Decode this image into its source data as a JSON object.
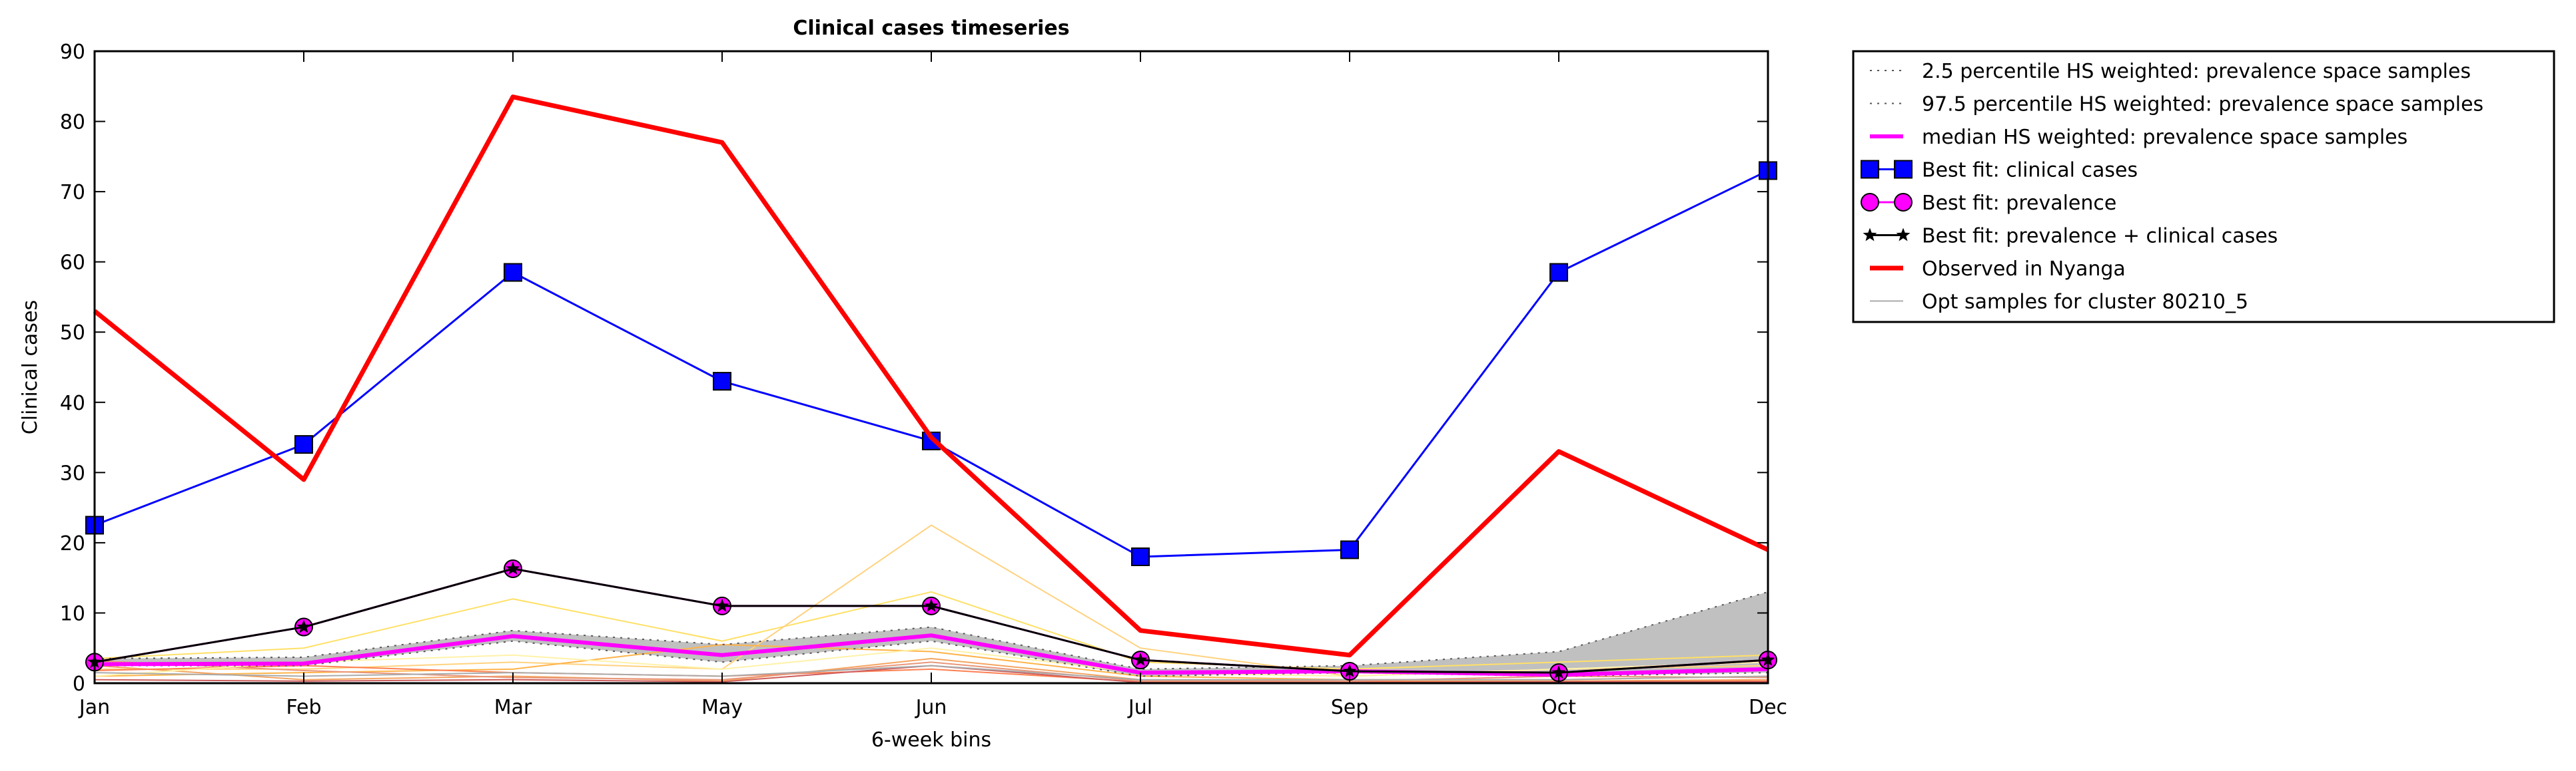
{
  "chart_data": {
    "type": "line",
    "title": "Clinical cases timeseries",
    "xlabel": "6-week bins",
    "ylabel": "Clinical cases",
    "categories": [
      "Jan",
      "Feb",
      "Mar",
      "May",
      "Jun",
      "Jul",
      "Sep",
      "Oct",
      "Dec"
    ],
    "ylim": [
      0,
      90
    ],
    "yticks": [
      0,
      10,
      20,
      30,
      40,
      50,
      60,
      70,
      80,
      90
    ],
    "grid": false,
    "legend_position": "outside-right-top",
    "series": [
      {
        "name": "2.5 percentile HS weighted: prevalence space samples",
        "style": "dotted",
        "color": "#555555",
        "values": [
          2.5,
          2.5,
          6,
          3,
          6,
          1,
          1.5,
          1,
          1.5
        ]
      },
      {
        "name": "97.5 percentile HS weighted: prevalence space samples",
        "style": "dotted",
        "color": "#555555",
        "values": [
          3.5,
          3.7,
          7.5,
          5.5,
          8,
          2,
          2.5,
          4.5,
          13
        ]
      },
      {
        "name": "median HS weighted: prevalence space samples",
        "style": "solid",
        "color": "#ff00ff",
        "values": [
          2.7,
          2.8,
          6.7,
          4,
          6.8,
          1.5,
          1.7,
          1.2,
          2
        ]
      },
      {
        "name": "Best fit: clinical cases",
        "style": "solid",
        "color": "#0000ff",
        "marker": "square",
        "values": [
          22.5,
          34,
          58.5,
          43,
          34.5,
          18,
          19,
          58.5,
          73
        ]
      },
      {
        "name": "Best fit: prevalence",
        "style": "solid",
        "color": "#ff00ff",
        "marker": "circle",
        "values": [
          3,
          8,
          16.3,
          11,
          11,
          3.3,
          1.7,
          1.5,
          3.3
        ]
      },
      {
        "name": "Best fit: prevalence + clinical cases",
        "style": "solid",
        "color": "#000000",
        "marker": "star",
        "values": [
          3,
          8,
          16.3,
          11,
          11,
          3.3,
          1.7,
          1.5,
          3.3
        ]
      },
      {
        "name": "Observed in Nyanga",
        "style": "solid",
        "color": "#ff0000",
        "values": [
          53,
          29,
          83.5,
          77,
          35,
          7.5,
          4,
          33,
          19
        ]
      },
      {
        "name": "Opt samples for cluster 80210_5",
        "style": "solid",
        "color": "#aaaaaa",
        "values": [
          1.5,
          1,
          1.5,
          1,
          2.5,
          0.5,
          0.5,
          0.5,
          1
        ]
      }
    ],
    "sample_lines": [
      {
        "color": "#ffe066",
        "values": [
          3.5,
          5,
          12,
          6,
          13,
          3,
          2,
          3,
          4
        ]
      },
      {
        "color": "#ffd27f",
        "values": [
          2,
          2,
          3,
          2,
          22.5,
          5,
          1,
          2,
          2.5
        ]
      },
      {
        "color": "#ffb347",
        "values": [
          1,
          1.5,
          2,
          5.5,
          4.5,
          1,
          0.5,
          0.5,
          1
        ]
      },
      {
        "color": "#f4a460",
        "values": [
          2.5,
          0.5,
          1,
          0.3,
          3.5,
          0.5,
          0.3,
          0.3,
          0.5
        ]
      },
      {
        "color": "#ff7f50",
        "values": [
          1.8,
          2.5,
          1.5,
          1,
          2,
          0.2,
          0.2,
          0.2,
          0.3
        ]
      },
      {
        "color": "#e9967a",
        "values": [
          3.2,
          1.8,
          0.8,
          0.5,
          3,
          0.3,
          0.3,
          1,
          0.8
        ]
      },
      {
        "color": "#cd5c5c",
        "values": [
          0.5,
          0.3,
          0.5,
          0.2,
          2.5,
          0.1,
          0.1,
          0.2,
          0.2
        ]
      },
      {
        "color": "#fff2a8",
        "values": [
          1,
          3,
          4,
          2,
          5,
          1.5,
          1,
          2,
          3
        ]
      }
    ],
    "band": {
      "lower_series": 0,
      "upper_series": 1,
      "color": "#c0c0c0"
    }
  }
}
